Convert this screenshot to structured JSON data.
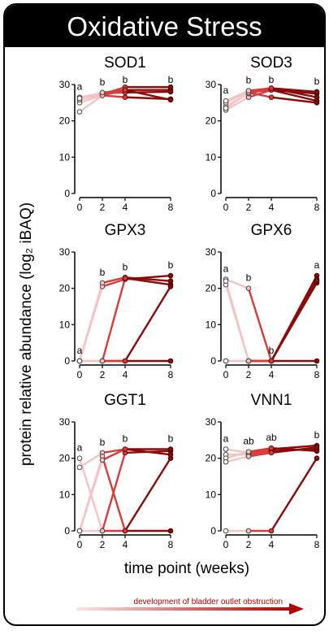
{
  "title": "Oxidative Stress",
  "ylabel": "protein relative abundance (log₂ iBAQ)",
  "xlabel": "time point (weeks)",
  "arrow_label": "development of bladder outlet obstruction",
  "colors": {
    "w0": "#ffffff",
    "w2": "#f4c4c4",
    "w4": "#d93b3b",
    "w8": "#8b0a0a"
  },
  "chart_data": [
    {
      "type": "line",
      "title": "SOD1",
      "x": [
        0,
        2,
        4,
        8
      ],
      "xticks": [
        "0",
        "2",
        "4",
        "8"
      ],
      "yticks": [
        0,
        10,
        20,
        30
      ],
      "ylim": [
        0,
        30
      ],
      "letters": [
        "a",
        "b",
        "b",
        "b"
      ],
      "series": [
        {
          "values": [
            25,
            27,
            28.5,
            28.5
          ]
        },
        {
          "values": [
            25.8,
            27.3,
            29.3,
            29.3
          ]
        },
        {
          "values": [
            26.5,
            27.6,
            27.8,
            28
          ]
        },
        {
          "values": [
            22.5,
            27,
            26.5,
            26
          ]
        },
        {
          "values": [
            26.2,
            27.8,
            28.5,
            25.8
          ]
        }
      ]
    },
    {
      "type": "line",
      "title": "SOD3",
      "x": [
        0,
        2,
        4,
        8
      ],
      "xticks": [
        "0",
        "2",
        "4",
        "8"
      ],
      "yticks": [
        0,
        10,
        20,
        30
      ],
      "ylim": [
        0,
        30
      ],
      "letters": [
        "a",
        "b",
        "b",
        "b"
      ],
      "series": [
        {
          "values": [
            23,
            26.5,
            28.5,
            27.5
          ]
        },
        {
          "values": [
            24,
            27.5,
            29,
            26.5
          ]
        },
        {
          "values": [
            25,
            28,
            28.5,
            25.5
          ]
        },
        {
          "values": [
            23.5,
            27.8,
            26.5,
            25
          ]
        },
        {
          "values": [
            25.5,
            28.3,
            29,
            28
          ]
        }
      ]
    },
    {
      "type": "line",
      "title": "GPX3",
      "x": [
        0,
        2,
        4,
        8
      ],
      "xticks": [
        "0",
        "2",
        "4",
        "8"
      ],
      "yticks": [
        0,
        10,
        20,
        30
      ],
      "ylim": [
        0,
        30
      ],
      "letters": [
        "a",
        "b",
        "b",
        "b"
      ],
      "series": [
        {
          "values": [
            0,
            20.5,
            22.5,
            23.5
          ]
        },
        {
          "values": [
            0,
            21.5,
            23,
            22
          ]
        },
        {
          "values": [
            0,
            0,
            22.8,
            21
          ]
        },
        {
          "values": [
            0,
            0,
            0,
            20.5
          ]
        },
        {
          "values": [
            0,
            0,
            0,
            0
          ]
        }
      ]
    },
    {
      "type": "line",
      "title": "GPX6",
      "x": [
        0,
        2,
        4,
        8
      ],
      "xticks": [
        "0",
        "2",
        "4",
        "8"
      ],
      "yticks": [
        0,
        10,
        20,
        30
      ],
      "ylim": [
        0,
        30
      ],
      "letters": [
        "a",
        "b",
        "b",
        "a"
      ],
      "series": [
        {
          "values": [
            22.5,
            20,
            0,
            23.5
          ]
        },
        {
          "values": [
            21,
            0,
            0,
            22.5
          ]
        },
        {
          "values": [
            22,
            0,
            0,
            21.5
          ]
        },
        {
          "values": [
            0,
            0,
            0,
            22
          ]
        },
        {
          "values": [
            0,
            0,
            0,
            0
          ]
        }
      ]
    },
    {
      "type": "line",
      "title": "GGT1",
      "x": [
        0,
        2,
        4,
        8
      ],
      "xticks": [
        "0",
        "2",
        "4",
        "8"
      ],
      "yticks": [
        0,
        10,
        20,
        30
      ],
      "ylim": [
        0,
        30
      ],
      "letters": [
        "a",
        "b",
        "b",
        "b"
      ],
      "series": [
        {
          "values": [
            20,
            0,
            21.5,
            22
          ]
        },
        {
          "values": [
            17.5,
            21.5,
            22.5,
            22.5
          ]
        },
        {
          "values": [
            0,
            20.5,
            0,
            20
          ]
        },
        {
          "values": [
            0,
            19.5,
            22.5,
            21
          ]
        },
        {
          "values": [
            0,
            0,
            0,
            0
          ]
        }
      ]
    },
    {
      "type": "line",
      "title": "VNN1",
      "x": [
        0,
        2,
        4,
        8
      ],
      "xticks": [
        "0",
        "2",
        "4",
        "8"
      ],
      "yticks": [
        0,
        10,
        20,
        30
      ],
      "ylim": [
        0,
        30
      ],
      "letters": [
        "a",
        "ab",
        "ab",
        "b"
      ],
      "series": [
        {
          "values": [
            22.5,
            21.5,
            22.5,
            23.5
          ]
        },
        {
          "values": [
            21,
            21,
            22,
            22.5
          ]
        },
        {
          "values": [
            20,
            21.8,
            22.8,
            22
          ]
        },
        {
          "values": [
            19,
            20.5,
            21.5,
            23
          ]
        },
        {
          "values": [
            0,
            0,
            0,
            20
          ]
        }
      ]
    }
  ]
}
